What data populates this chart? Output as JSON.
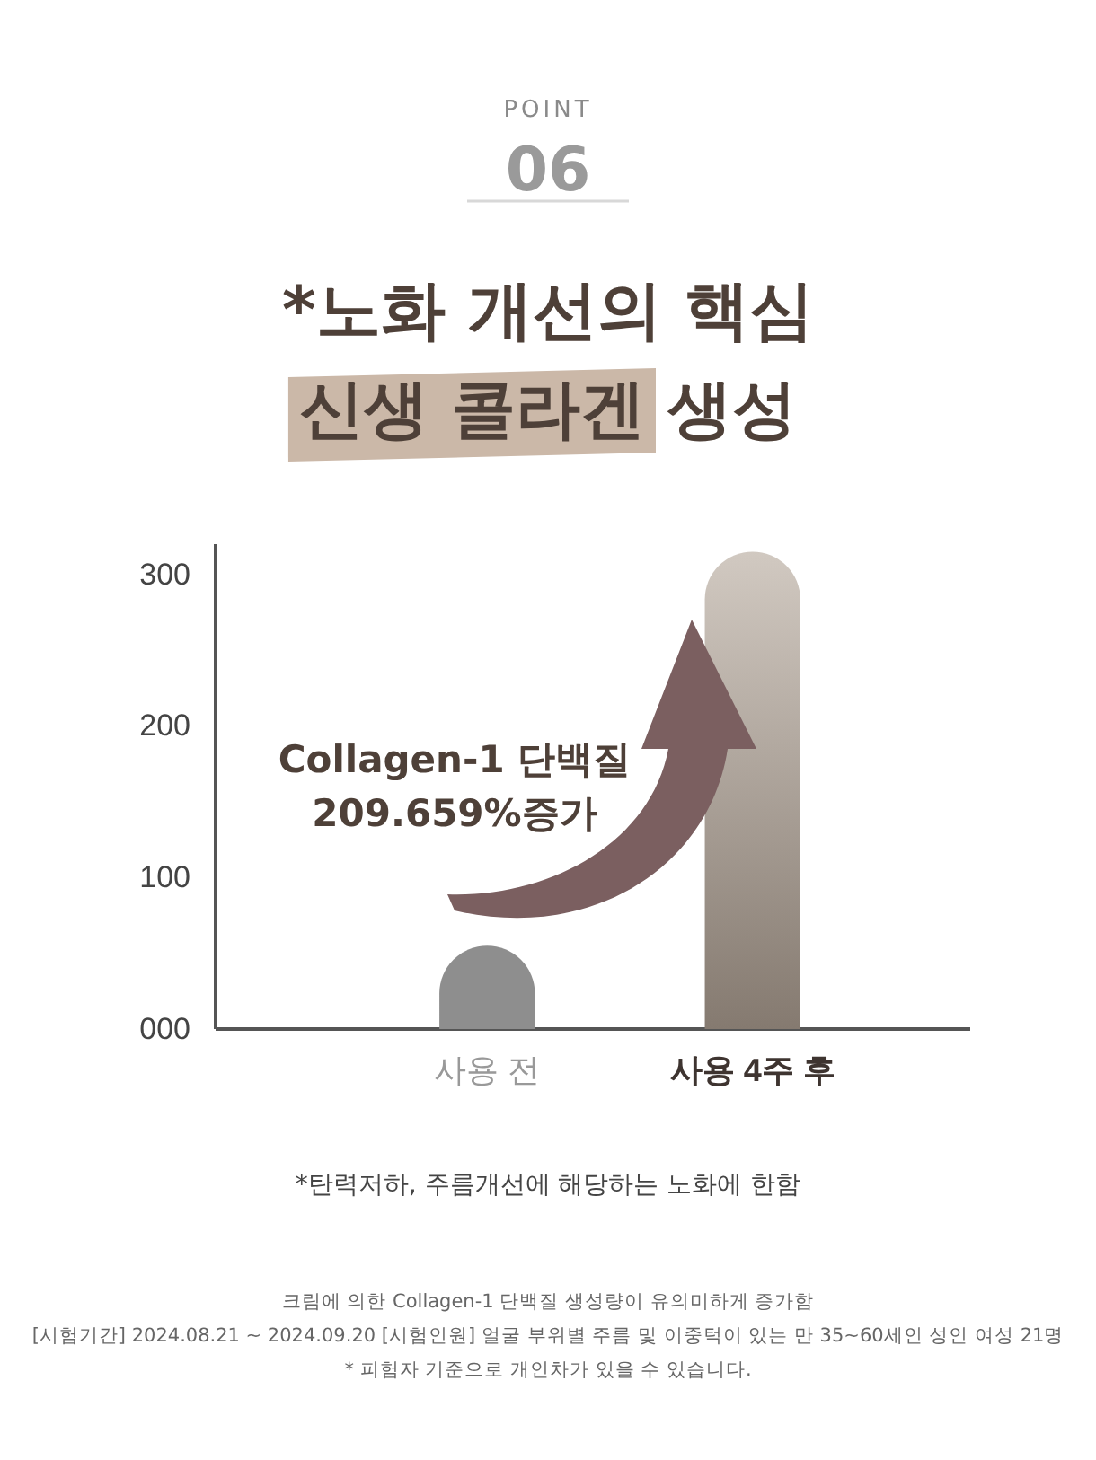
{
  "chart_data": {
    "type": "bar",
    "title": "*노화 개선의 핵심\n신생 콜라겐 생성",
    "categories": [
      "사용 전",
      "사용 4주 후"
    ],
    "values": [
      55,
      315
    ],
    "colors": [
      "#8e8e8e",
      "#ab9d8f"
    ],
    "ylim": [
      0,
      320
    ],
    "yticks": [
      {
        "value": 0,
        "label": "000"
      },
      100,
      200,
      300
    ],
    "annotations": [
      "POINT",
      "06",
      "Collagen-1 단백질\n209.659%증가",
      "*탄력저하, 주름개선에 해당하는 노화에 한함",
      "크림에 의한 Collagen-1 단백질 생성량이 유의미하게 증가함",
      "[시험기간] 2024.08.21 ~ 2024.09.20 [시험인원]  얼굴 부위별 주름 및 이중턱이 있는 만 35~60세인 성인 여성 21명",
      "* 피험자 기준으로 개인차가 있을 수 있습니다."
    ]
  }
}
